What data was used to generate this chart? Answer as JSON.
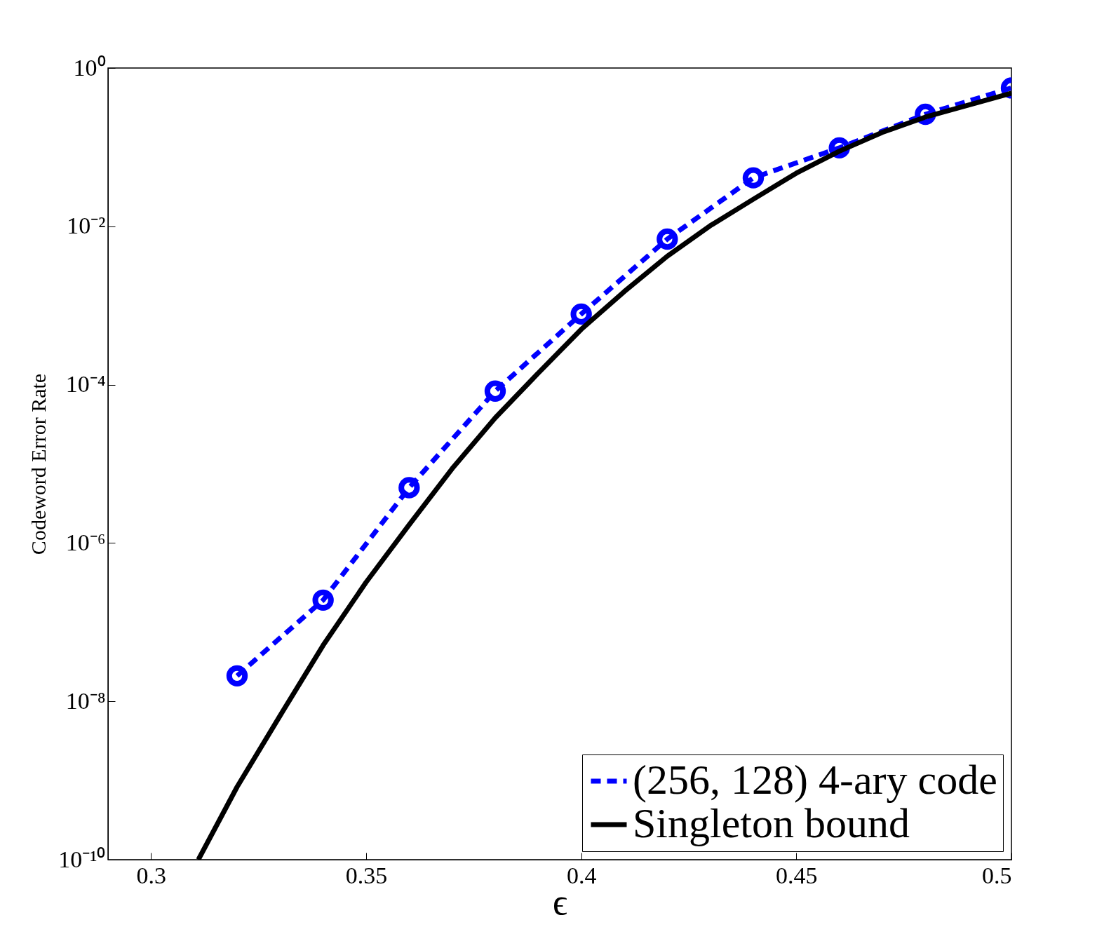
{
  "chart_data": {
    "type": "line",
    "xlabel": "ϵ",
    "ylabel": "Codeword Error Rate",
    "xlim": [
      0.29,
      0.5
    ],
    "xticks": [
      0.3,
      0.35,
      0.4,
      0.45,
      0.5
    ],
    "ylim": [
      1e-10,
      1
    ],
    "yticks": [
      {
        "value": 1e-10,
        "label": "10⁻¹⁰"
      },
      {
        "value": 1e-08,
        "label": "10⁻⁸"
      },
      {
        "value": 1e-06,
        "label": "10⁻⁶"
      },
      {
        "value": 0.0001,
        "label": "10⁻⁴"
      },
      {
        "value": 0.01,
        "label": "10⁻²"
      },
      {
        "value": 1,
        "label": "10⁰"
      }
    ],
    "log": "y",
    "grid": false,
    "legend": "bottom right",
    "series": [
      {
        "name": "(256, 128) 4-ary code",
        "color": "#0000ff",
        "marker": "circle",
        "line_style": "dashed",
        "x": [
          0.32,
          0.34,
          0.36,
          0.38,
          0.4,
          0.42,
          0.44,
          0.46,
          0.48,
          0.5
        ],
        "values": [
          2.1e-08,
          1.9e-07,
          5e-06,
          8.3e-05,
          0.00078,
          0.0069,
          0.041,
          0.098,
          0.26,
          0.56
        ]
      },
      {
        "name": "Singleton bound",
        "color": "#000000",
        "marker": "none",
        "line_style": "solid",
        "x": [
          0.311,
          0.32,
          0.33,
          0.34,
          0.35,
          0.36,
          0.37,
          0.38,
          0.39,
          0.4,
          0.41,
          0.42,
          0.43,
          0.44,
          0.45,
          0.46,
          0.47,
          0.48,
          0.49,
          0.5
        ],
        "values": [
          1e-10,
          8.3e-10,
          6.6e-09,
          5.1e-08,
          3.2e-07,
          1.7e-06,
          8.7e-06,
          3.8e-05,
          0.00014,
          0.0005,
          0.0015,
          0.0042,
          0.0102,
          0.022,
          0.047,
          0.089,
          0.154,
          0.24,
          0.34,
          0.48
        ]
      }
    ]
  }
}
